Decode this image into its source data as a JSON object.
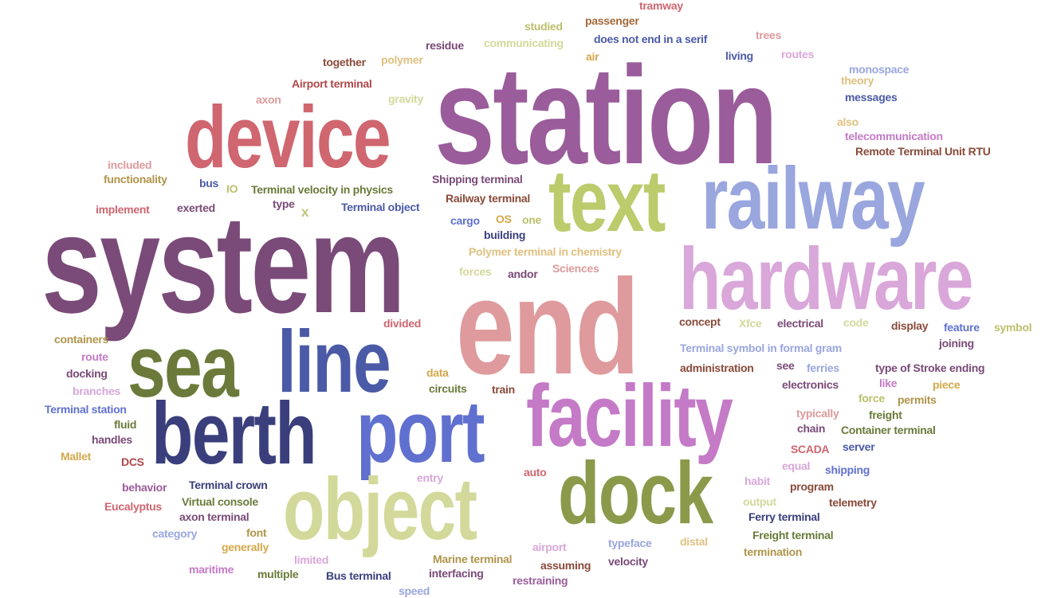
{
  "words": [
    {
      "text": "station",
      "color": "#9a5c9a"
    },
    {
      "text": "system",
      "color": "#7a4a78"
    },
    {
      "text": "end",
      "color": "#de9a9c"
    },
    {
      "text": "railway",
      "color": "#9aa6de"
    },
    {
      "text": "hardware",
      "color": "#d9a7d9"
    },
    {
      "text": "device",
      "color": "#cf6670"
    },
    {
      "text": "text",
      "color": "#bccb6c"
    },
    {
      "text": "facility",
      "color": "#c47ac6"
    },
    {
      "text": "berth",
      "color": "#3a3f7c"
    },
    {
      "text": "port",
      "color": "#6070cf"
    },
    {
      "text": "sea",
      "color": "#6b7a3a"
    },
    {
      "text": "line",
      "color": "#4a5aa6"
    },
    {
      "text": "object",
      "color": "#d3d99a"
    },
    {
      "text": "dock",
      "color": "#8a9a4a"
    },
    {
      "text": "tramway",
      "color": "#cf6670"
    },
    {
      "text": "passenger",
      "color": "#a46a3a"
    },
    {
      "text": "studied",
      "color": "#bcc06c"
    },
    {
      "text": "trees",
      "color": "#de9a9c"
    },
    {
      "text": "does not end in a serif",
      "color": "#4a5aa6"
    },
    {
      "text": "communicating",
      "color": "#d3d99a"
    },
    {
      "text": "residue",
      "color": "#7a4a78"
    },
    {
      "text": "air",
      "color": "#d4a84a"
    },
    {
      "text": "routes",
      "color": "#d9a7d9"
    },
    {
      "text": "living",
      "color": "#4a5aa6"
    },
    {
      "text": "together",
      "color": "#8a4a3a"
    },
    {
      "text": "polymer",
      "color": "#e0c080"
    },
    {
      "text": "monospace",
      "color": "#9aa6de"
    },
    {
      "text": "theory",
      "color": "#e0c080"
    },
    {
      "text": "Airport terminal",
      "color": "#b0484a"
    },
    {
      "text": "axon",
      "color": "#de9a9c"
    },
    {
      "text": "gravity",
      "color": "#d3d99a"
    },
    {
      "text": "messages",
      "color": "#4a5aa6"
    },
    {
      "text": "also",
      "color": "#e0c080"
    },
    {
      "text": "telecommunication",
      "color": "#c47ac6"
    },
    {
      "text": "Remote Terminal Unit RTU",
      "color": "#8a4a3a"
    },
    {
      "text": "included",
      "color": "#de9a9c"
    },
    {
      "text": "functionality",
      "color": "#b0944a"
    },
    {
      "text": "Shipping terminal",
      "color": "#7a4a78"
    },
    {
      "text": "bus",
      "color": "#4a5aa6"
    },
    {
      "text": "IO",
      "color": "#bcc06c"
    },
    {
      "text": "Terminal velocity in physics",
      "color": "#6b7a3a"
    },
    {
      "text": "Railway terminal",
      "color": "#8a4a3a"
    },
    {
      "text": "implement",
      "color": "#cf6670"
    },
    {
      "text": "exerted",
      "color": "#7a4a78"
    },
    {
      "text": "type",
      "color": "#7a4a78"
    },
    {
      "text": "X",
      "color": "#bcc06c"
    },
    {
      "text": "Terminal object",
      "color": "#4a5aa6"
    },
    {
      "text": "cargo",
      "color": "#6070cf"
    },
    {
      "text": "OS",
      "color": "#d4a84a"
    },
    {
      "text": "one",
      "color": "#bcc06c"
    },
    {
      "text": "building",
      "color": "#3a3f7c"
    },
    {
      "text": "Polymer terminal in chemistry",
      "color": "#e0c080"
    },
    {
      "text": "forces",
      "color": "#d3d99a"
    },
    {
      "text": "andor",
      "color": "#7a4a78"
    },
    {
      "text": "Sciences",
      "color": "#de9a9c"
    },
    {
      "text": "divided",
      "color": "#cf6670"
    },
    {
      "text": "concept",
      "color": "#8a4a3a"
    },
    {
      "text": "Xfce",
      "color": "#d3d99a"
    },
    {
      "text": "electrical",
      "color": "#7a4a78"
    },
    {
      "text": "code",
      "color": "#d3d99a"
    },
    {
      "text": "display",
      "color": "#8a4a3a"
    },
    {
      "text": "feature",
      "color": "#6070cf"
    },
    {
      "text": "symbol",
      "color": "#bcc06c"
    },
    {
      "text": "containers",
      "color": "#b0944a"
    },
    {
      "text": "Terminal symbol in formal gram",
      "color": "#9aa6de"
    },
    {
      "text": "joining",
      "color": "#7a4a78"
    },
    {
      "text": "route",
      "color": "#c47ac6"
    },
    {
      "text": "administration",
      "color": "#8a4a3a"
    },
    {
      "text": "see",
      "color": "#7a4a78"
    },
    {
      "text": "ferries",
      "color": "#9aa6de"
    },
    {
      "text": "type of Stroke ending",
      "color": "#7a4a78"
    },
    {
      "text": "docking",
      "color": "#7a4a78"
    },
    {
      "text": "data",
      "color": "#d4a84a"
    },
    {
      "text": "like",
      "color": "#c47ac6"
    },
    {
      "text": "piece",
      "color": "#d4a84a"
    },
    {
      "text": "branches",
      "color": "#d9a7d9"
    },
    {
      "text": "circuits",
      "color": "#6b7a3a"
    },
    {
      "text": "train",
      "color": "#8a4a3a"
    },
    {
      "text": "electronics",
      "color": "#7a4a78"
    },
    {
      "text": "force",
      "color": "#bcc06c"
    },
    {
      "text": "permits",
      "color": "#b0944a"
    },
    {
      "text": "Terminal station",
      "color": "#6070cf"
    },
    {
      "text": "typically",
      "color": "#de9a9c"
    },
    {
      "text": "freight",
      "color": "#6b7a3a"
    },
    {
      "text": "fluid",
      "color": "#6b7a3a"
    },
    {
      "text": "chain",
      "color": "#7a4a78"
    },
    {
      "text": "Container terminal",
      "color": "#6b7a3a"
    },
    {
      "text": "handles",
      "color": "#7a4a78"
    },
    {
      "text": "SCADA",
      "color": "#cf6670"
    },
    {
      "text": "server",
      "color": "#4a5aa6"
    },
    {
      "text": "Mallet",
      "color": "#d4a84a"
    },
    {
      "text": "DCS",
      "color": "#b0484a"
    },
    {
      "text": "equal",
      "color": "#d9a7d9"
    },
    {
      "text": "shipping",
      "color": "#6070cf"
    },
    {
      "text": "auto",
      "color": "#cf6670"
    },
    {
      "text": "behavior",
      "color": "#9a5c9a"
    },
    {
      "text": "entry",
      "color": "#d9a7d9"
    },
    {
      "text": "habit",
      "color": "#d9a7d9"
    },
    {
      "text": "program",
      "color": "#8a4a3a"
    },
    {
      "text": "Terminal crown",
      "color": "#3a3f7c"
    },
    {
      "text": "Eucalyptus",
      "color": "#cf6670"
    },
    {
      "text": "Virtual console",
      "color": "#6b7a3a"
    },
    {
      "text": "output",
      "color": "#d3d99a"
    },
    {
      "text": "telemetry",
      "color": "#8a4a3a"
    },
    {
      "text": "axon terminal",
      "color": "#7a4a78"
    },
    {
      "text": "category",
      "color": "#9aa6de"
    },
    {
      "text": "font",
      "color": "#b0944a"
    },
    {
      "text": "Ferry terminal",
      "color": "#3a3f7c"
    },
    {
      "text": "Freight terminal",
      "color": "#6b7a3a"
    },
    {
      "text": "generally",
      "color": "#d4a84a"
    },
    {
      "text": "typeface",
      "color": "#9aa6de"
    },
    {
      "text": "distal",
      "color": "#e0c080"
    },
    {
      "text": "airport",
      "color": "#d9a7d9"
    },
    {
      "text": "termination",
      "color": "#b0944a"
    },
    {
      "text": "limited",
      "color": "#d9a7d9"
    },
    {
      "text": "Marine terminal",
      "color": "#b0944a"
    },
    {
      "text": "assuming",
      "color": "#8a4a3a"
    },
    {
      "text": "velocity",
      "color": "#7a4a78"
    },
    {
      "text": "maritime",
      "color": "#c47ac6"
    },
    {
      "text": "multiple",
      "color": "#6b7a3a"
    },
    {
      "text": "Bus terminal",
      "color": "#3a3f7c"
    },
    {
      "text": "interfacing",
      "color": "#7a4a78"
    },
    {
      "text": "restraining",
      "color": "#9a5c9a"
    },
    {
      "text": "speed",
      "color": "#9aa6de"
    }
  ]
}
